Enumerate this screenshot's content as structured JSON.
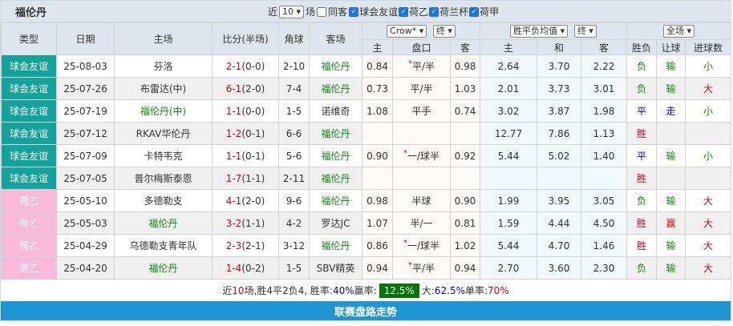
{
  "title": "福伦丹",
  "filters": {
    "near_label": "近",
    "count": "10",
    "field_label": "场",
    "same_away_label": "同客",
    "same_away": false,
    "leagues": [
      {
        "label": "球会友谊",
        "checked": true
      },
      {
        "label": "荷乙",
        "checked": true
      },
      {
        "label": "荷兰杯",
        "checked": true
      },
      {
        "label": "荷甲",
        "checked": true
      }
    ]
  },
  "headers": {
    "type": "类型",
    "date": "日期",
    "home": "主场",
    "score": "比分(半场)",
    "corner": "角球",
    "away": "客场",
    "company": "Crow*",
    "ah_time": "终",
    "eu_type": "胜平负均值",
    "eu_time": "终",
    "scope": "全场",
    "ah_home": "主",
    "ah_line": "盘口",
    "ah_away": "客",
    "eu_home": "主",
    "eu_draw": "和",
    "eu_away": "客",
    "wl": "胜负",
    "hc": "让球",
    "goals": "进球数"
  },
  "colors": {
    "friendly": "#14a39a",
    "eredivisie2": "#f9b9d9",
    "win": "#d0021b",
    "lose": "#118811",
    "draw": "#0000cc",
    "badge": "#007700",
    "bar": "#1e96d4"
  },
  "rows": [
    {
      "type": "球会友谊",
      "league": "friendly",
      "date": "25-08-03",
      "home": "芬洛",
      "home_green": false,
      "ft": "2-1",
      "ht": "(0-0)",
      "corner": "2-10",
      "away": "福伦丹",
      "away_green": true,
      "ah_home": "0.84",
      "ah_line": "平/半",
      "star": true,
      "ah_away": "0.98",
      "eu_home": "2.64",
      "eu_draw": "3.70",
      "eu_away": "2.22",
      "wl": "负",
      "wlc": "green",
      "hc": "输",
      "hcc": "green",
      "goals": "小",
      "gc": "green"
    },
    {
      "type": "球会友谊",
      "league": "friendly",
      "date": "25-07-26",
      "home": "布雷达(中)",
      "home_green": false,
      "ft": "6-1",
      "ht": "(2-0)",
      "corner": "7-4",
      "away": "福伦丹",
      "away_green": true,
      "ah_home": "0.73",
      "ah_line": "平/半",
      "star": false,
      "ah_away": "1.03",
      "eu_home": "2.01",
      "eu_draw": "3.73",
      "eu_away": "3.01",
      "wl": "负",
      "wlc": "green",
      "hc": "输",
      "hcc": "green",
      "goals": "大",
      "gc": "red"
    },
    {
      "type": "球会友谊",
      "league": "friendly",
      "date": "25-07-19",
      "home": "福伦丹(中)",
      "home_green": true,
      "ft": "1-1",
      "ht": "(0-0)",
      "corner": "1-5",
      "away": "诺维奇",
      "away_green": false,
      "ah_home": "1.08",
      "ah_line": "平手",
      "star": false,
      "ah_away": "0.74",
      "eu_home": "3.02",
      "eu_draw": "3.87",
      "eu_away": "1.98",
      "wl": "平",
      "wlc": "blue",
      "hc": "走",
      "hcc": "blue",
      "goals": "小",
      "gc": "green"
    },
    {
      "type": "球会友谊",
      "league": "friendly",
      "date": "25-07-12",
      "home": "RKAV华伦丹",
      "home_green": false,
      "ft": "1-2",
      "ht": "(0-1)",
      "corner": "6-6",
      "away": "福伦丹",
      "away_green": true,
      "ah_home": "",
      "ah_line": "",
      "star": false,
      "ah_away": "",
      "eu_home": "12.77",
      "eu_draw": "7.86",
      "eu_away": "1.13",
      "wl": "胜",
      "wlc": "red",
      "hc": "",
      "hcc": "green",
      "goals": "",
      "gc": "green"
    },
    {
      "type": "球会友谊",
      "league": "friendly",
      "date": "25-07-09",
      "home": "卡特韦克",
      "home_green": false,
      "ft": "1-1",
      "ht": "(0-1)",
      "corner": "5-6",
      "away": "福伦丹",
      "away_green": true,
      "ah_home": "0.90",
      "ah_line": "一/球半",
      "star": true,
      "ah_away": "0.92",
      "eu_home": "5.44",
      "eu_draw": "5.02",
      "eu_away": "1.40",
      "wl": "平",
      "wlc": "blue",
      "hc": "输",
      "hcc": "green",
      "goals": "小",
      "gc": "green"
    },
    {
      "type": "球会友谊",
      "league": "friendly",
      "date": "25-07-05",
      "home": "普尔梅斯泰恩",
      "home_green": false,
      "ft": "1-7",
      "ht": "(1-1)",
      "corner": "2-11",
      "away": "福伦丹",
      "away_green": true,
      "ah_home": "",
      "ah_line": "",
      "star": false,
      "ah_away": "",
      "eu_home": "",
      "eu_draw": "",
      "eu_away": "",
      "wl": "胜",
      "wlc": "red",
      "hc": "",
      "hcc": "green",
      "goals": "",
      "gc": "green"
    },
    {
      "type": "荷乙",
      "league": "eredivisie2",
      "date": "25-05-10",
      "home": "多德勒支",
      "home_green": false,
      "ft": "4-1",
      "ht": "(2-0)",
      "corner": "9-6",
      "away": "福伦丹",
      "away_green": true,
      "ah_home": "0.98",
      "ah_line": "半球",
      "star": false,
      "ah_away": "0.90",
      "eu_home": "1.99",
      "eu_draw": "3.95",
      "eu_away": "3.05",
      "wl": "负",
      "wlc": "green",
      "hc": "输",
      "hcc": "green",
      "goals": "大",
      "gc": "red"
    },
    {
      "type": "荷乙",
      "league": "eredivisie2",
      "date": "25-05-03",
      "home": "福伦丹",
      "home_green": true,
      "ft": "3-2",
      "ht": "(1-1)",
      "corner": "4-2",
      "away": "罗达JC",
      "away_green": false,
      "ah_home": "1.07",
      "ah_line": "半/一",
      "star": false,
      "ah_away": "0.81",
      "eu_home": "1.59",
      "eu_draw": "4.44",
      "eu_away": "4.50",
      "wl": "胜",
      "wlc": "red",
      "hc": "赢",
      "hcc": "red",
      "goals": "大",
      "gc": "red"
    },
    {
      "type": "荷乙",
      "league": "eredivisie2",
      "date": "25-04-29",
      "home": "乌德勒支青年队",
      "home_green": false,
      "ft": "2-3",
      "ht": "(2-1)",
      "corner": "3-12",
      "away": "福伦丹",
      "away_green": true,
      "ah_home": "0.86",
      "ah_line": "一/球半",
      "star": true,
      "ah_away": "1.02",
      "eu_home": "5.44",
      "eu_draw": "4.70",
      "eu_away": "1.46",
      "wl": "胜",
      "wlc": "red",
      "hc": "输",
      "hcc": "green",
      "goals": "大",
      "gc": "red"
    },
    {
      "type": "荷乙",
      "league": "eredivisie2",
      "date": "25-04-20",
      "home": "福伦丹",
      "home_green": true,
      "ft": "1-4",
      "ht": "(0-2)",
      "corner": "1-5",
      "away": "SBV精英",
      "away_green": false,
      "ah_home": "0.94",
      "ah_line": "平/半",
      "star": true,
      "ah_away": "0.94",
      "eu_home": "2.70",
      "eu_draw": "3.60",
      "eu_away": "2.30",
      "wl": "负",
      "wlc": "green",
      "hc": "输",
      "hcc": "green",
      "goals": "大",
      "gc": "red"
    }
  ],
  "summary": {
    "p1": "近",
    "n": "10",
    "p2": "场,胜4平2负4, 胜率:",
    "win_rate": "40%",
    "p3": " 赢率:",
    "ah_rate": "12.5%",
    "p4": " 大:",
    "over_rate": "62.5%",
    "p5": " 单率:",
    "odd_rate": "70%"
  },
  "footer": "联赛盘路走势"
}
